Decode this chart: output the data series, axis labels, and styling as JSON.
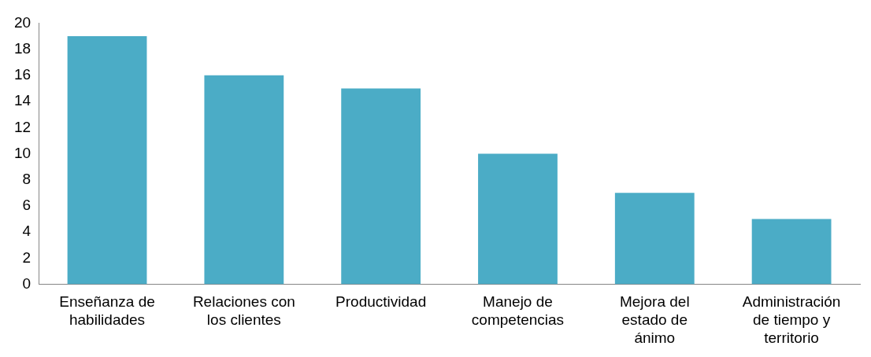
{
  "chart_data": {
    "type": "bar",
    "categories": [
      "Enseñanza de habilidades",
      "Relaciones con los clientes",
      "Productividad",
      "Manejo de competencias",
      "Mejora del estado de ánimo",
      "Administración de tiempo y territorio"
    ],
    "values": [
      19,
      16,
      15,
      10,
      7,
      5
    ],
    "color": "#4bacc6",
    "ylim": [
      0,
      20
    ],
    "yticks": [
      0,
      2,
      4,
      6,
      8,
      10,
      12,
      14,
      16,
      18,
      20
    ],
    "grid": false,
    "legend": false
  }
}
